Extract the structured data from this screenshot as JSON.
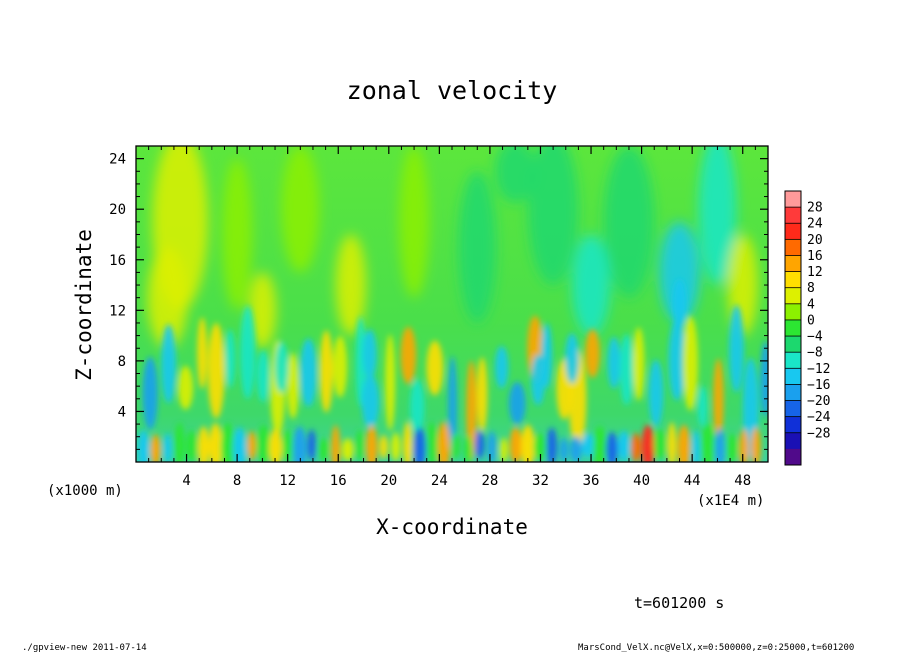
{
  "chart_data": {
    "type": "heatmap",
    "title": "zonal velocity",
    "xlabel": "X-coordinate",
    "ylabel": "Z-coordinate",
    "x_unit_note": "(x1000 m)",
    "x_exponent_note": "(x1E4 m)",
    "xlim": [
      0,
      50
    ],
    "ylim": [
      0,
      25
    ],
    "xticks": [
      4,
      8,
      12,
      16,
      20,
      24,
      28,
      32,
      36,
      40,
      44,
      48
    ],
    "yticks": [
      4,
      8,
      12,
      16,
      20,
      24
    ],
    "colorbar": {
      "levels": [
        28,
        24,
        20,
        16,
        12,
        8,
        4,
        0,
        -4,
        -8,
        -12,
        -16,
        -20,
        -24,
        -28
      ],
      "labels": [
        "28",
        "24",
        "20",
        "16",
        "12",
        "8",
        "4",
        "0",
        "−4",
        "−8",
        "−12",
        "−16",
        "−20",
        "−24",
        "−28"
      ],
      "colors": [
        "#ff9a9a",
        "#ff3a3a",
        "#ff2a1a",
        "#ff6a00",
        "#ffa500",
        "#ffde00",
        "#ddf000",
        "#8cf000",
        "#2ce632",
        "#1cd86e",
        "#1ae6c8",
        "#18c8f0",
        "#1aa0ee",
        "#1664e8",
        "#1030d8",
        "#1a10b4",
        "#500a8a"
      ]
    },
    "field_description": "Mostly green (around 0) in upper half with a yellow band near x=2-5; alternating yellow/orange and cyan/blue streaks in lower half (z<10); red spots near the bottom around x=40-41 and x=30."
  },
  "annotations": {
    "time": "t=601200 s",
    "footer_left": "./gpview-new  2011-07-14",
    "footer_right": "MarsCond_VelX.nc@VelX,x=0:500000,z=0:25000,t=601200"
  }
}
